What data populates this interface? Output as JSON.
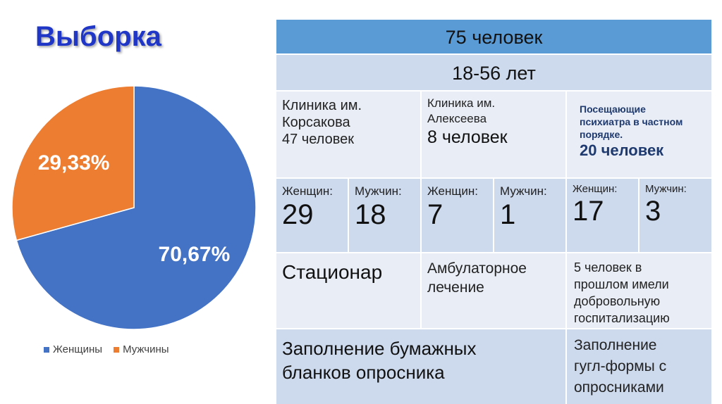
{
  "title": "Выборка",
  "chart_data": {
    "type": "pie",
    "categories": [
      "Женщины",
      "Мужчины"
    ],
    "values": [
      70.67,
      29.33
    ],
    "labels": [
      "70,67%",
      "29,33%"
    ],
    "colors": [
      "#4472c4",
      "#ed7d31"
    ],
    "legend": "bottom"
  },
  "table": {
    "total": "75 человек",
    "age": "18-56 лет",
    "clinic1": {
      "name_line1": "Клиника им.",
      "name_line2": "Корсакова",
      "count": "47 человек"
    },
    "clinic2": {
      "name_line1": "Клиника им.",
      "name_line2": "Алексеева",
      "count": "8 человек"
    },
    "clinic3": {
      "name_line1": "Посещающие",
      "name_line2": "психиатра в частном",
      "name_line3": "порядке.",
      "count": "20 человек"
    },
    "gender": {
      "women_label": "Женщин:",
      "men_label": "Мужчин:",
      "c1_women": "29",
      "c1_men": "18",
      "c2_women": "7",
      "c2_men": "1",
      "c3_women": "17",
      "c3_men": "3"
    },
    "mode": {
      "c1": "Стационар",
      "c2_line1": "Амбулаторное",
      "c2_line2": "лечение",
      "c3_line1": "5 человек в",
      "c3_line2": "прошлом имели",
      "c3_line3": "добровольную",
      "c3_line4": "госпитализацию"
    },
    "forms": {
      "paper_line1": "Заполнение бумажных",
      "paper_line2": "бланков опросника",
      "google_line1": "Заполнение",
      "google_line2": "гугл-формы с",
      "google_line3": "опросниками"
    }
  }
}
